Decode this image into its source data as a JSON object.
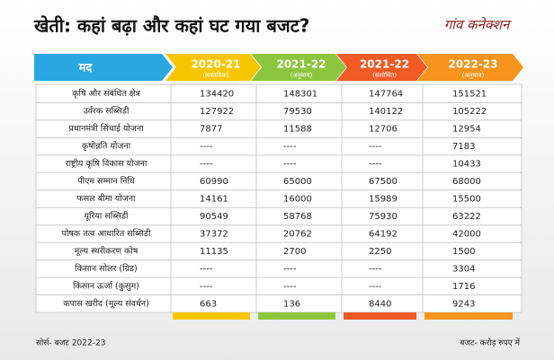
{
  "title": "खेती: कहां बढ़ा और कहां घट गया बजट?",
  "logo": "गांव कनेक्शन",
  "table": {
    "header": [
      {
        "label": "मद"
      },
      {
        "label": "2020-21",
        "note": "(वास्तविक)"
      },
      {
        "label": "2021-22",
        "note": "(अनुमान)"
      },
      {
        "label": "2021-22",
        "note": "(संशोधित)"
      },
      {
        "label": "2022-23",
        "note": "(अनुमान)"
      }
    ],
    "rows": [
      [
        "कृषि और संबंधित क्षेत्र",
        134420,
        148301,
        147764,
        151521
      ],
      [
        "उर्वरक सब्सिडी",
        127922,
        79530,
        140122,
        105222
      ],
      [
        "प्रधानमंत्री सिंचाई योजना",
        7877,
        11588,
        12706,
        12954
      ],
      [
        "कृषोन्नति योजना",
        "----",
        "----",
        "----",
        7183
      ],
      [
        "राष्ट्रीय कृषि विकास योजना",
        "----",
        "----",
        "----",
        10433
      ],
      [
        "पीएम सम्मान निधि",
        60990,
        65000,
        67500,
        68000
      ],
      [
        "फसल बीमा योजना",
        14161,
        16000,
        15989,
        15500
      ],
      [
        "यूरिया सब्सिडी",
        90549,
        58768,
        75930,
        63222
      ],
      [
        "पोषक तत्व आधारित सब्सिडी",
        37372,
        20762,
        64192,
        42000
      ],
      [
        "मूल्य स्थरीकरण कोष",
        11135,
        2700,
        2250,
        1500
      ],
      [
        "किसान सोलर (ग्रिड)",
        "----",
        "----",
        "----",
        3304
      ],
      [
        "किसान ऊर्जा (कुसुम)",
        "----",
        "----",
        "----",
        1716
      ],
      [
        "कपास खरीद (मूल्य संवर्धन)",
        663,
        136,
        8440,
        9243
      ]
    ]
  },
  "footer": {
    "source": "सोर्स- बजट 2022-23",
    "unit": "बजट- करोड़ रुपए में"
  }
}
